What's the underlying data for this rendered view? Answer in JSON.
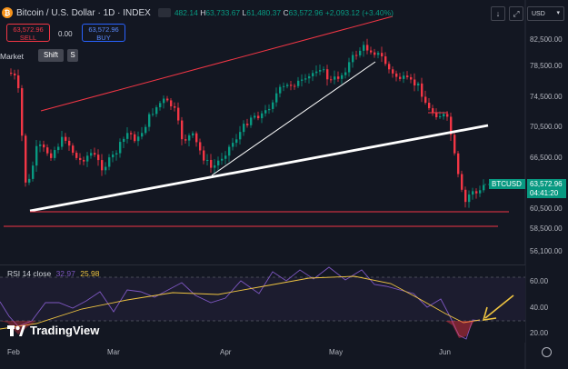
{
  "header": {
    "coin_glyph": "₿",
    "title": "Bitcoin / U.S. Dollar · 1D · INDEX",
    "ohlc_partial": "482.14",
    "high_label": "H",
    "high": "63,733.67",
    "low_label": "L",
    "low": "61,480.37",
    "close_label": "C",
    "close": "63,572.96",
    "change": "+2,093.12 (+3.40%)"
  },
  "trade": {
    "sell_price": "63,572.96",
    "sell_label": "SELL",
    "spread": "0.00",
    "buy_price": "63,572.96",
    "buy_label": "BUY"
  },
  "order": {
    "market_label": "Market",
    "shift_key": "Shift",
    "s_key": "S"
  },
  "toolbar": {
    "download_glyph": "↓",
    "fullscreen_glyph": "⤢",
    "currency": "USD",
    "currency_chevron": "▾"
  },
  "price_axis": {
    "ticks": [
      "82,500.00",
      "78,500.00",
      "74,500.00",
      "70,500.00",
      "66,500.00",
      "60,500.00",
      "58,500.00",
      "56,100.00"
    ],
    "tick_values": [
      82500,
      78500,
      74500,
      70500,
      66500,
      60500,
      58500,
      56100
    ],
    "current_symbol": "BTCUSD",
    "current_price": "63,572.96",
    "countdown": "04:41:20"
  },
  "rsi": {
    "label": "RSI 14 close",
    "value1": "32.97",
    "value2": "25.98",
    "ticks": [
      "60.00",
      "40.00",
      "20.00"
    ]
  },
  "time_axis": {
    "labels": [
      "Feb",
      "Mar",
      "Apr",
      "May",
      "Jun"
    ]
  },
  "brand": {
    "name": "TradingView"
  },
  "colors": {
    "up": "#089981",
    "down": "#f23645",
    "rsi_line": "#7e57c2",
    "rsi_ma": "#f0c541",
    "trendline": "#ffffff",
    "channel": "#f23645",
    "arrow": "#f0c541",
    "price_tag": "#089981"
  }
}
